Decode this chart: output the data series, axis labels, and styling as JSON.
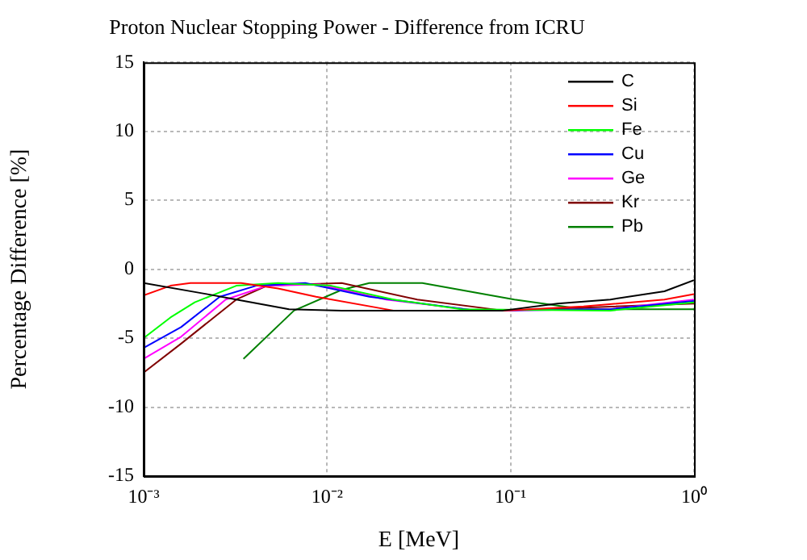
{
  "chart_data": {
    "type": "line",
    "title": "Proton Nuclear Stopping Power - Difference from ICRU",
    "xlabel": "E [MeV]",
    "ylabel": "Percentage Difference [%]",
    "log": "x",
    "grid": true,
    "legend": "top right",
    "marker": "none",
    "line_style": "solid",
    "xlim": [
      0.001,
      1
    ],
    "xticks": [
      {
        "value": 0.001,
        "label": "10⁻³"
      },
      {
        "value": 0.01,
        "label": "10⁻²"
      },
      {
        "value": 0.1,
        "label": "10⁻¹"
      },
      {
        "value": 1,
        "label": "10⁰"
      }
    ],
    "ylim": [
      -15,
      15
    ],
    "yticks": [
      -15,
      -10,
      -5,
      0,
      5,
      10,
      15
    ],
    "series": [
      {
        "name": "C",
        "color": "#000000",
        "x": [
          0.001,
          0.0022,
          0.0032,
          0.0062,
          0.012,
          0.091,
          0.18,
          0.35,
          0.69,
          1
        ],
        "values": [
          -1.0,
          -1.8,
          -2.2,
          -2.9,
          -3.0,
          -3.0,
          -2.5,
          -2.2,
          -1.6,
          -0.8
        ]
      },
      {
        "name": "Si",
        "color": "#ff0000",
        "x": [
          0.001,
          0.0014,
          0.0018,
          0.0034,
          0.0054,
          0.0087,
          0.023,
          0.091,
          0.25,
          0.69,
          1
        ],
        "values": [
          -1.9,
          -1.2,
          -1.0,
          -1.0,
          -1.4,
          -2.0,
          -3.0,
          -3.0,
          -2.7,
          -2.2,
          -1.8
        ]
      },
      {
        "name": "Fe",
        "color": "#00ff00",
        "x": [
          0.001,
          0.0014,
          0.0019,
          0.0032,
          0.0054,
          0.0105,
          0.023,
          0.054,
          0.35,
          1
        ],
        "values": [
          -5.0,
          -3.5,
          -2.4,
          -1.2,
          -1.0,
          -1.2,
          -2.2,
          -2.9,
          -3.0,
          -2.4
        ]
      },
      {
        "name": "Cu",
        "color": "#0000ff",
        "x": [
          0.001,
          0.0016,
          0.0026,
          0.0041,
          0.0076,
          0.017,
          0.065,
          0.35,
          1
        ],
        "values": [
          -5.7,
          -4.2,
          -2.0,
          -1.2,
          -1.0,
          -2.0,
          -3.0,
          -2.9,
          -2.3
        ]
      },
      {
        "name": "Ge",
        "color": "#ff00ff",
        "x": [
          0.001,
          0.0016,
          0.0028,
          0.0047,
          0.0091,
          0.021,
          0.065,
          0.35,
          1
        ],
        "values": [
          -6.5,
          -4.9,
          -2.2,
          -1.2,
          -1.1,
          -2.2,
          -3.0,
          -2.9,
          -2.2
        ]
      },
      {
        "name": "Kr",
        "color": "#800000",
        "x": [
          0.001,
          0.0016,
          0.0032,
          0.0047,
          0.012,
          0.031,
          0.091,
          1
        ],
        "values": [
          -7.5,
          -5.4,
          -2.2,
          -1.2,
          -1.0,
          -2.2,
          -3.0,
          -2.5
        ]
      },
      {
        "name": "Pb",
        "color": "#008000",
        "x": [
          0.0035,
          0.0066,
          0.012,
          0.017,
          0.033,
          0.105,
          0.25,
          1
        ],
        "values": [
          -6.5,
          -3.0,
          -1.5,
          -1.0,
          -1.0,
          -2.2,
          -2.9,
          -2.9
        ]
      }
    ]
  }
}
